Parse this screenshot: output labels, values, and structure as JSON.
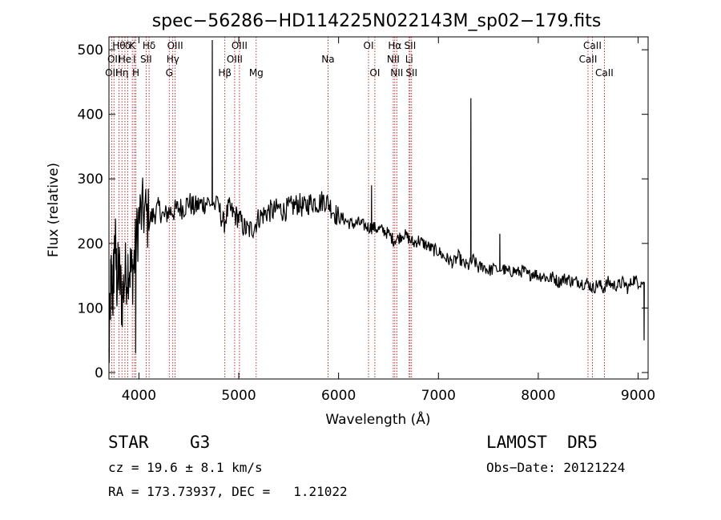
{
  "chart_data": {
    "type": "line",
    "title": "spec−56286−HD114225N022143M_sp02−179.fits",
    "xlabel": "Wavelength (Å)",
    "ylabel": "Flux (relative)",
    "xlim": [
      3700,
      9100
    ],
    "ylim": [
      -10,
      520
    ],
    "xticks": [
      4000,
      5000,
      6000,
      7000,
      8000,
      9000
    ],
    "yticks": [
      0,
      100,
      200,
      300,
      400,
      500
    ],
    "line_color": "#000000",
    "marker_color": "#aa0000",
    "series": [
      {
        "x": [
          3700,
          3720,
          3740,
          3760,
          3780,
          3800,
          3830,
          3860,
          3900,
          3930,
          3960,
          4000,
          4050,
          4100,
          4150,
          4200,
          4250,
          4300,
          4350,
          4400,
          4450,
          4500,
          4550,
          4600,
          4650,
          4700,
          4800,
          4850,
          4900,
          4950,
          5000,
          5050,
          5100,
          5150,
          5200,
          5250,
          5300,
          5350,
          5400,
          5450,
          5500,
          5550,
          5600,
          5650,
          5700,
          5750,
          5800,
          5850,
          5900,
          5950,
          6000,
          6050,
          6100,
          6150,
          6200,
          6250,
          6300,
          6350,
          6400,
          6450,
          6500,
          6550,
          6600,
          6650,
          6700,
          6750,
          6800,
          6850,
          6900,
          6950,
          7000,
          7050,
          7100,
          7150,
          7200,
          7250,
          7300,
          7350,
          7400,
          7450,
          7500,
          7550,
          7650,
          7700,
          7750,
          7800,
          7850,
          7900,
          7950,
          8000,
          8050,
          8100,
          8150,
          8200,
          8250,
          8300,
          8350,
          8400,
          8450,
          8500,
          8550,
          8600,
          8650,
          8700,
          8750,
          8800,
          8850,
          8900,
          8950,
          9000,
          9050
        ],
        "y": [
          20,
          150,
          120,
          210,
          140,
          160,
          110,
          150,
          170,
          150,
          180,
          240,
          250,
          235,
          245,
          255,
          240,
          250,
          250,
          255,
          255,
          265,
          255,
          260,
          262,
          265,
          255,
          230,
          255,
          245,
          240,
          225,
          220,
          225,
          240,
          245,
          250,
          250,
          255,
          250,
          255,
          258,
          262,
          255,
          262,
          265,
          262,
          268,
          262,
          250,
          240,
          238,
          232,
          230,
          232,
          228,
          225,
          225,
          222,
          220,
          215,
          205,
          208,
          215,
          208,
          200,
          205,
          200,
          195,
          190,
          188,
          180,
          175,
          170,
          180,
          168,
          165,
          175,
          162,
          165,
          158,
          160,
          160,
          155,
          158,
          155,
          158,
          150,
          155,
          150,
          150,
          145,
          148,
          140,
          145,
          145,
          140,
          142,
          138,
          138,
          130,
          138,
          130,
          140,
          135,
          135,
          140,
          130,
          145,
          140,
          140
        ]
      }
    ],
    "spikes": [
      {
        "x": 4735,
        "y": 515
      },
      {
        "x": 7325,
        "y": 425
      },
      {
        "x": 7615,
        "y": 215
      },
      {
        "x": 6330,
        "y": 290
      },
      {
        "x": 3968,
        "y": 30
      },
      {
        "x": 9060,
        "y": 50
      }
    ],
    "spectral_lines": [
      {
        "x": 3727,
        "row": 2,
        "label": "OII"
      },
      {
        "x": 3750,
        "row": 1,
        "label": "OII"
      },
      {
        "x": 3800,
        "row": 0,
        "label": "Hθ"
      },
      {
        "x": 3830,
        "row": 2,
        "label": "Hη"
      },
      {
        "x": 3860,
        "row": 1,
        "label": "He"
      },
      {
        "x": 3889,
        "row": 0,
        "label": "δ"
      },
      {
        "x": 3934,
        "row": 0,
        "label": "K"
      },
      {
        "x": 3955,
        "row": 1,
        "label": "I"
      },
      {
        "x": 3969,
        "row": 2,
        "label": "H"
      },
      {
        "x": 4072,
        "row": 1,
        "label": "SII"
      },
      {
        "x": 4102,
        "row": 0,
        "label": "Hδ"
      },
      {
        "x": 4304,
        "row": 2,
        "label": "G"
      },
      {
        "x": 4340,
        "row": 1,
        "label": "Hγ"
      },
      {
        "x": 4363,
        "row": 0,
        "label": "OIII"
      },
      {
        "x": 4861,
        "row": 2,
        "label": "Hβ"
      },
      {
        "x": 4959,
        "row": 1,
        "label": "OIII"
      },
      {
        "x": 5007,
        "row": 0,
        "label": "OIII"
      },
      {
        "x": 5175,
        "row": 2,
        "label": "Mg"
      },
      {
        "x": 5894,
        "row": 1,
        "label": "Na"
      },
      {
        "x": 6300,
        "row": 0,
        "label": "OI"
      },
      {
        "x": 6363,
        "row": 2,
        "label": "OI"
      },
      {
        "x": 6548,
        "row": 1,
        "label": "NII"
      },
      {
        "x": 6563,
        "row": 0,
        "label": "Hα"
      },
      {
        "x": 6583,
        "row": 2,
        "label": "NII"
      },
      {
        "x": 6707,
        "row": 1,
        "label": "Li"
      },
      {
        "x": 6716,
        "row": 0,
        "label": "SII"
      },
      {
        "x": 6731,
        "row": 2,
        "label": "SII"
      },
      {
        "x": 8498,
        "row": 1,
        "label": "CaII"
      },
      {
        "x": 8542,
        "row": 0,
        "label": "CaII"
      },
      {
        "x": 8662,
        "row": 2,
        "label": "CaII"
      }
    ]
  },
  "info": {
    "object_class": "STAR",
    "subclass": "G3",
    "survey": "LAMOST  DR5",
    "redshift": "cz = 19.6 ± 8.1 km/s",
    "obs_date": "Obs−Date: 20121224",
    "coords": "RA = 173.73937, DEC =   1.21022"
  }
}
